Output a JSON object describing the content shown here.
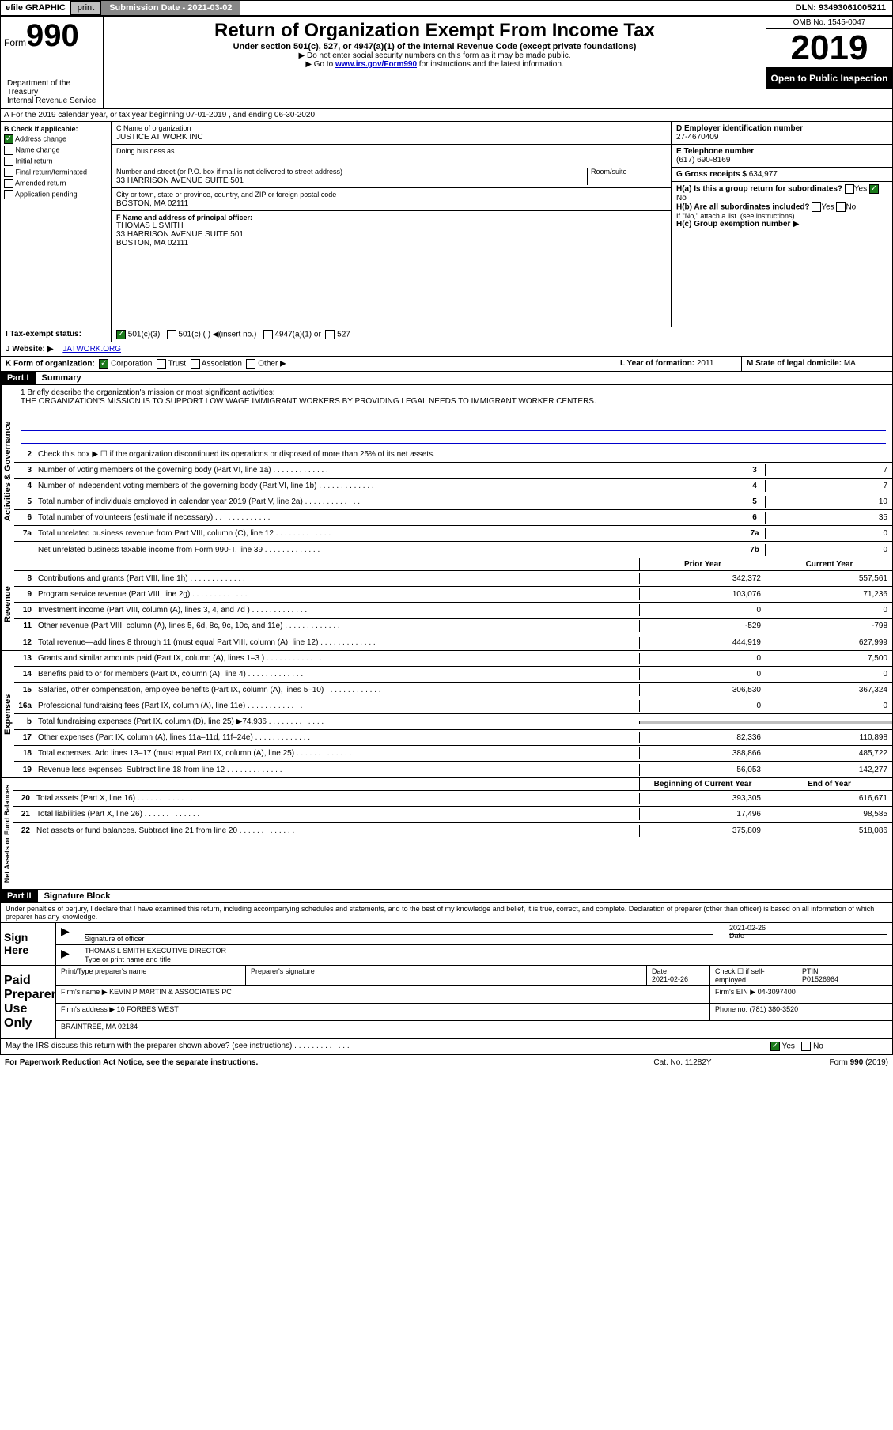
{
  "topBar": {
    "efile": "efile GRAPHIC",
    "print": "print",
    "submission": "Submission Date - 2021-03-02",
    "dln": "DLN: 93493061005211"
  },
  "header": {
    "formPrefix": "Form",
    "formNumber": "990",
    "title": "Return of Organization Exempt From Income Tax",
    "subtitle": "Under section 501(c), 527, or 4947(a)(1) of the Internal Revenue Code (except private foundations)",
    "note1": "▶ Do not enter social security numbers on this form as it may be made public.",
    "note2a": "▶ Go to ",
    "note2link": "www.irs.gov/Form990",
    "note2b": " for instructions and the latest information.",
    "dept": "Department of the Treasury\nInternal Revenue Service",
    "omb": "OMB No. 1545-0047",
    "year": "2019",
    "inspection": "Open to Public Inspection"
  },
  "rowA": "A For the 2019 calendar year, or tax year beginning 07-01-2019   , and ending 06-30-2020",
  "sectionB": {
    "label": "B Check if applicable:",
    "addressChange": "Address change",
    "nameChange": "Name change",
    "initialReturn": "Initial return",
    "finalReturn": "Final return/terminated",
    "amendedReturn": "Amended return",
    "applicationPending": "Application pending"
  },
  "sectionC": {
    "nameLabel": "C Name of organization",
    "name": "JUSTICE AT WORK INC",
    "dbaLabel": "Doing business as",
    "dba": "",
    "addressLabel": "Number and street (or P.O. box if mail is not delivered to street address)",
    "roomLabel": "Room/suite",
    "address": "33 HARRISON AVENUE SUITE 501",
    "cityLabel": "City or town, state or province, country, and ZIP or foreign postal code",
    "city": "BOSTON, MA  02111"
  },
  "sectionD": {
    "label": "D Employer identification number",
    "value": "27-4670409"
  },
  "sectionE": {
    "label": "E Telephone number",
    "value": "(617) 690-8169"
  },
  "sectionF": {
    "label": "F Name and address of principal officer:",
    "name": "THOMAS L SMITH",
    "addr1": "33 HARRISON AVENUE SUITE 501",
    "addr2": "BOSTON, MA  02111"
  },
  "sectionG": {
    "label": "G Gross receipts $",
    "value": "634,977"
  },
  "sectionH": {
    "ha": "H(a)  Is this a group return for subordinates?",
    "haYes": "Yes",
    "haNo": "No",
    "hb": "H(b)  Are all subordinates included?",
    "hbNote": "If \"No,\" attach a list. (see instructions)",
    "hc": "H(c)  Group exemption number ▶"
  },
  "rowI": {
    "label": "I   Tax-exempt status:",
    "o501c3": "501(c)(3)",
    "o501c": "501(c) (  ) ◀(insert no.)",
    "o4947": "4947(a)(1) or",
    "o527": "527"
  },
  "rowJ": {
    "label": "J   Website: ▶",
    "value": "JATWORK.ORG"
  },
  "rowK": {
    "label": "K Form of organization:",
    "corp": "Corporation",
    "trust": "Trust",
    "assoc": "Association",
    "other": "Other ▶"
  },
  "rowL": {
    "label": "L Year of formation:",
    "value": "2011"
  },
  "rowM": {
    "label": "M State of legal domicile:",
    "value": "MA"
  },
  "partI": {
    "header": "Part I",
    "title": "Summary",
    "q1": "1  Briefly describe the organization's mission or most significant activities:",
    "mission": "THE ORGANIZATION'S MISSION IS TO SUPPORT LOW WAGE IMMIGRANT WORKERS BY PROVIDING LEGAL NEEDS TO IMMIGRANT WORKER CENTERS.",
    "q2": "Check this box ▶ ☐  if the organization discontinued its operations or disposed of more than 25% of its net assets.",
    "lines": [
      {
        "n": "3",
        "d": "Number of voting members of the governing body (Part VI, line 1a)",
        "b": "3",
        "v": "7"
      },
      {
        "n": "4",
        "d": "Number of independent voting members of the governing body (Part VI, line 1b)",
        "b": "4",
        "v": "7"
      },
      {
        "n": "5",
        "d": "Total number of individuals employed in calendar year 2019 (Part V, line 2a)",
        "b": "5",
        "v": "10"
      },
      {
        "n": "6",
        "d": "Total number of volunteers (estimate if necessary)",
        "b": "6",
        "v": "35"
      },
      {
        "n": "7a",
        "d": "Total unrelated business revenue from Part VIII, column (C), line 12",
        "b": "7a",
        "v": "0"
      },
      {
        "n": "",
        "d": "Net unrelated business taxable income from Form 990-T, line 39",
        "b": "7b",
        "v": "0"
      }
    ]
  },
  "revenue": {
    "label": "Revenue",
    "header1": "Prior Year",
    "header2": "Current Year",
    "rows": [
      {
        "n": "8",
        "d": "Contributions and grants (Part VIII, line 1h)",
        "py": "342,372",
        "cy": "557,561"
      },
      {
        "n": "9",
        "d": "Program service revenue (Part VIII, line 2g)",
        "py": "103,076",
        "cy": "71,236"
      },
      {
        "n": "10",
        "d": "Investment income (Part VIII, column (A), lines 3, 4, and 7d )",
        "py": "0",
        "cy": "0"
      },
      {
        "n": "11",
        "d": "Other revenue (Part VIII, column (A), lines 5, 6d, 8c, 9c, 10c, and 11e)",
        "py": "-529",
        "cy": "-798"
      },
      {
        "n": "12",
        "d": "Total revenue—add lines 8 through 11 (must equal Part VIII, column (A), line 12)",
        "py": "444,919",
        "cy": "627,999"
      }
    ]
  },
  "expenses": {
    "label": "Expenses",
    "rows": [
      {
        "n": "13",
        "d": "Grants and similar amounts paid (Part IX, column (A), lines 1–3 )",
        "py": "0",
        "cy": "7,500"
      },
      {
        "n": "14",
        "d": "Benefits paid to or for members (Part IX, column (A), line 4)",
        "py": "0",
        "cy": "0"
      },
      {
        "n": "15",
        "d": "Salaries, other compensation, employee benefits (Part IX, column (A), lines 5–10)",
        "py": "306,530",
        "cy": "367,324"
      },
      {
        "n": "16a",
        "d": "Professional fundraising fees (Part IX, column (A), line 11e)",
        "py": "0",
        "cy": "0"
      },
      {
        "n": "b",
        "d": "Total fundraising expenses (Part IX, column (D), line 25) ▶74,936",
        "py": "grey",
        "cy": "grey"
      },
      {
        "n": "17",
        "d": "Other expenses (Part IX, column (A), lines 11a–11d, 11f–24e)",
        "py": "82,336",
        "cy": "110,898"
      },
      {
        "n": "18",
        "d": "Total expenses. Add lines 13–17 (must equal Part IX, column (A), line 25)",
        "py": "388,866",
        "cy": "485,722"
      },
      {
        "n": "19",
        "d": "Revenue less expenses. Subtract line 18 from line 12",
        "py": "56,053",
        "cy": "142,277"
      }
    ]
  },
  "netAssets": {
    "label": "Net Assets or Fund Balances",
    "header1": "Beginning of Current Year",
    "header2": "End of Year",
    "rows": [
      {
        "n": "20",
        "d": "Total assets (Part X, line 16)",
        "py": "393,305",
        "cy": "616,671"
      },
      {
        "n": "21",
        "d": "Total liabilities (Part X, line 26)",
        "py": "17,496",
        "cy": "98,585"
      },
      {
        "n": "22",
        "d": "Net assets or fund balances. Subtract line 21 from line 20",
        "py": "375,809",
        "cy": "518,086"
      }
    ]
  },
  "partII": {
    "header": "Part II",
    "title": "Signature Block",
    "perjury": "Under penalties of perjury, I declare that I have examined this return, including accompanying schedules and statements, and to the best of my knowledge and belief, it is true, correct, and complete. Declaration of preparer (other than officer) is based on all information of which preparer has any knowledge."
  },
  "sign": {
    "label": "Sign Here",
    "sigLabel": "Signature of officer",
    "date": "2021-02-26",
    "dateLabel": "Date",
    "name": "THOMAS L SMITH  EXECUTIVE DIRECTOR",
    "nameLabel": "Type or print name and title"
  },
  "paid": {
    "label": "Paid Preparer Use Only",
    "col1": "Print/Type preparer's name",
    "col2": "Preparer's signature",
    "col3": "Date",
    "dateVal": "2021-02-26",
    "col4": "Check ☐ if self-employed",
    "col5": "PTIN",
    "ptin": "P01526964",
    "firmNameLabel": "Firm's name    ▶",
    "firmName": "KEVIN P MARTIN & ASSOCIATES PC",
    "firmEinLabel": "Firm's EIN ▶",
    "firmEin": "04-3097400",
    "firmAddrLabel": "Firm's address ▶",
    "firmAddr1": "10 FORBES WEST",
    "firmAddr2": "BRAINTREE, MA  02184",
    "phoneLabel": "Phone no.",
    "phone": "(781) 380-3520"
  },
  "discuss": {
    "text": "May the IRS discuss this return with the preparer shown above? (see instructions)",
    "yes": "Yes",
    "no": "No"
  },
  "footer": {
    "paperwork": "For Paperwork Reduction Act Notice, see the separate instructions.",
    "cat": "Cat. No. 11282Y",
    "form": "Form 990 (2019)"
  }
}
